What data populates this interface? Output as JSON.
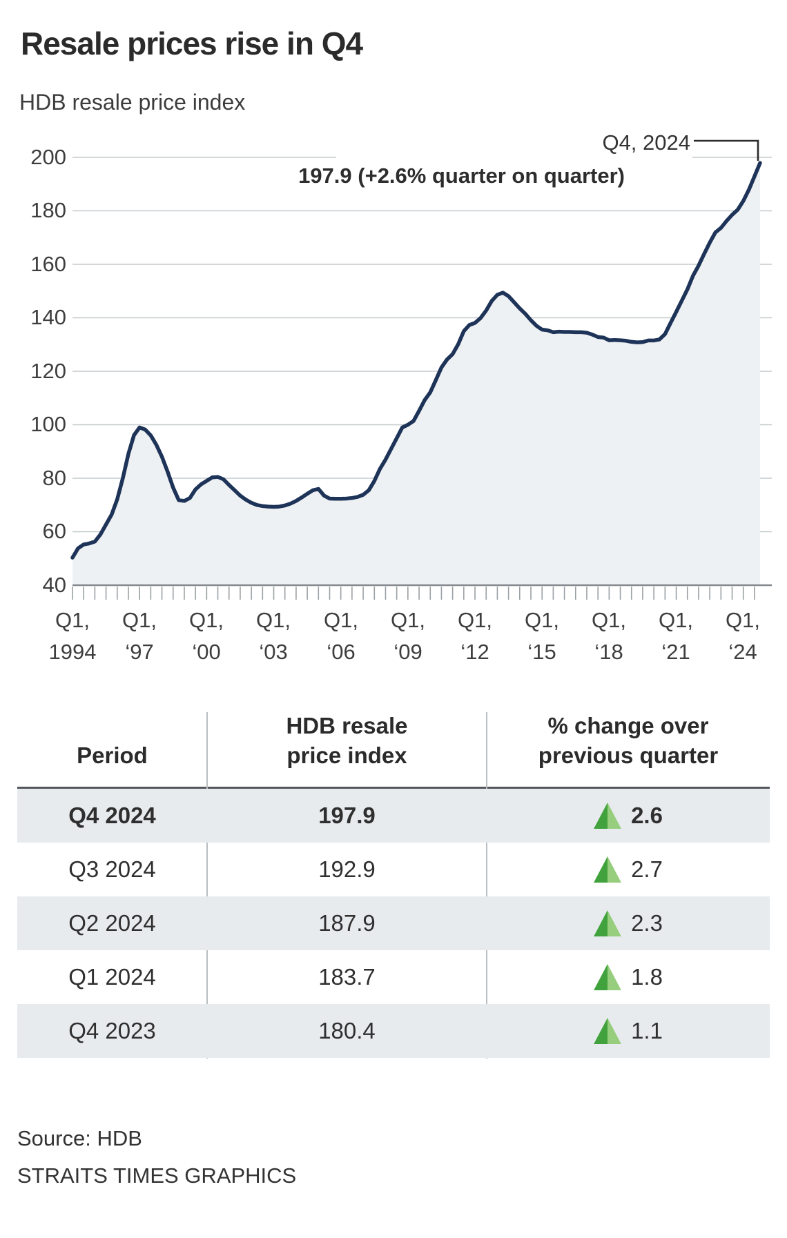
{
  "title": "Resale prices rise in Q4",
  "subtitle": "HDB resale price index",
  "annotation": {
    "line1": "Q4, 2024",
    "line2": "197.9 (+2.6% quarter on quarter)"
  },
  "chart_data": {
    "type": "area",
    "title": "HDB resale price index",
    "frequency": "quarterly",
    "x_start": "Q1 1994",
    "x_end": "Q4 2024",
    "ylim": [
      40,
      200
    ],
    "grid": true,
    "yticks": [
      "200",
      "180",
      "160",
      "140",
      "120",
      "100",
      "80",
      "60",
      "40"
    ],
    "x_labels": [
      {
        "l1": "Q1,",
        "l2": "1994"
      },
      {
        "l1": "Q1,",
        "l2": "‘97"
      },
      {
        "l1": "Q1,",
        "l2": "‘00"
      },
      {
        "l1": "Q1,",
        "l2": "‘03"
      },
      {
        "l1": "Q1,",
        "l2": "‘06"
      },
      {
        "l1": "Q1,",
        "l2": "‘09"
      },
      {
        "l1": "Q1,",
        "l2": "‘12"
      },
      {
        "l1": "Q1,",
        "l2": "‘15"
      },
      {
        "l1": "Q1,",
        "l2": "‘18"
      },
      {
        "l1": "Q1,",
        "l2": "‘21"
      },
      {
        "l1": "Q1,",
        "l2": "‘24"
      }
    ],
    "values": [
      50.3,
      53.8,
      55.2,
      55.6,
      56.3,
      59.0,
      62.7,
      66.4,
      72.1,
      80.0,
      89.1,
      96.1,
      99.0,
      98.2,
      96.0,
      92.5,
      88.0,
      82.5,
      76.5,
      71.8,
      71.5,
      72.6,
      75.8,
      77.7,
      79.0,
      80.3,
      80.5,
      79.6,
      77.5,
      75.5,
      73.5,
      72.0,
      70.8,
      70.0,
      69.6,
      69.4,
      69.3,
      69.4,
      69.8,
      70.5,
      71.5,
      72.8,
      74.2,
      75.5,
      76.0,
      73.5,
      72.4,
      72.3,
      72.3,
      72.4,
      72.6,
      73.0,
      73.8,
      75.5,
      79.0,
      83.5,
      87.0,
      91.0,
      95.0,
      99.0,
      100.0,
      101.4,
      105.2,
      109.2,
      112.1,
      116.7,
      121.4,
      124.4,
      126.4,
      130.1,
      135.0,
      137.3,
      138.1,
      139.9,
      142.7,
      146.3,
      148.6,
      149.4,
      148.1,
      145.8,
      143.5,
      141.5,
      139.1,
      137.0,
      135.6,
      135.3,
      134.6,
      134.8,
      134.7,
      134.7,
      134.6,
      134.6,
      134.4,
      133.7,
      132.8,
      132.6,
      131.6,
      131.7,
      131.6,
      131.4,
      131.0,
      130.8,
      130.9,
      131.5,
      131.5,
      131.9,
      133.9,
      138.1,
      142.2,
      146.4,
      150.6,
      155.7,
      159.5,
      163.9,
      168.1,
      171.9,
      173.6,
      176.2,
      178.5,
      180.4,
      183.7,
      187.9,
      192.9,
      197.9
    ],
    "last_point": {
      "period": "Q4 2024",
      "value": 197.9,
      "qoq_change_pct": 2.6
    }
  },
  "colors": {
    "line": "#1e3358",
    "fill": "#eef1f3",
    "grid": "#c6cacd",
    "axis": "#85898e",
    "tick": "#9aa0a4",
    "connector": "#2b2b2b",
    "triangle_dark": "#41a13c",
    "triangle_light": "#96ce7d",
    "row_shade": "#e8ebee"
  },
  "table": {
    "header": {
      "period": "Period",
      "index_l1": "HDB resale",
      "index_l2": "price index",
      "change_l1": "% change over",
      "change_l2": "previous quarter"
    },
    "rows": [
      {
        "period": "Q4 2024",
        "index": "197.9",
        "change": "2.6"
      },
      {
        "period": "Q3 2024",
        "index": "192.9",
        "change": "2.7"
      },
      {
        "period": "Q2 2024",
        "index": "187.9",
        "change": "2.3"
      },
      {
        "period": "Q1 2024",
        "index": "183.7",
        "change": "1.8"
      },
      {
        "period": "Q4 2023",
        "index": "180.4",
        "change": "1.1"
      }
    ]
  },
  "footer": {
    "source": "Source: HDB",
    "credit": "STRAITS TIMES GRAPHICS"
  }
}
